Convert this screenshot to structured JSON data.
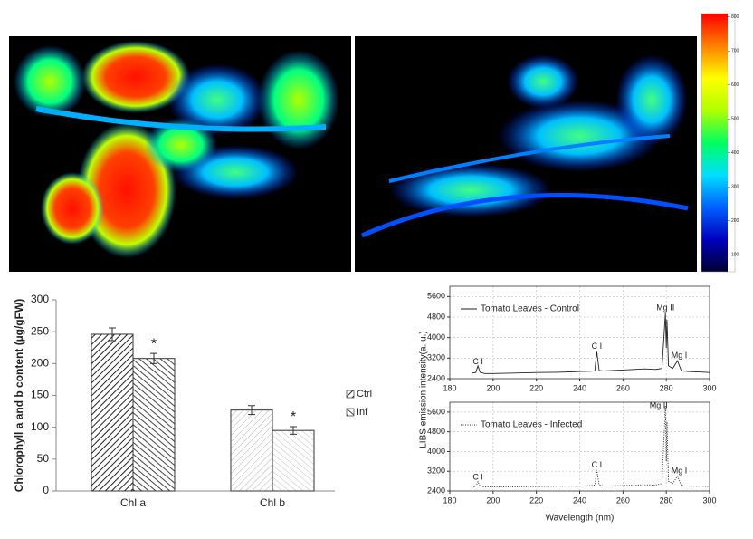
{
  "chart_data": [
    {
      "type": "colorbar",
      "ylim": [
        50,
        810
      ],
      "yticks": [
        100,
        200,
        300,
        400,
        500,
        600,
        700,
        800
      ],
      "colors": [
        "#000030",
        "#0000c0",
        "#0060ff",
        "#00e0ff",
        "#00ff60",
        "#b0ff00",
        "#ffff00",
        "#ff8000",
        "#ff0000"
      ]
    },
    {
      "type": "bar",
      "ylabel": "Chlorophyll a and b content (µg/gFW)",
      "categories": [
        "Chl a",
        "Chl b"
      ],
      "series": [
        {
          "name": "Ctrl",
          "color": "#222222",
          "values": [
            246,
            127
          ],
          "errors": [
            10,
            7
          ]
        },
        {
          "name": "Inf",
          "color": "#444444",
          "values": [
            208,
            95
          ],
          "errors": [
            8,
            6
          ],
          "significance": [
            "*",
            "*"
          ]
        }
      ],
      "ylim": [
        0,
        300
      ],
      "yticks": [
        0,
        50,
        100,
        150,
        200,
        250,
        300
      ],
      "grid": false
    },
    {
      "type": "line",
      "ylabel": "LIBS emission intensity(a. u.)",
      "x": [
        190,
        192,
        193,
        194,
        196,
        200,
        210,
        220,
        230,
        240,
        245,
        247,
        247.9,
        249,
        251,
        255,
        260,
        265,
        270,
        275,
        278,
        279.6,
        280,
        280.3,
        281,
        283,
        285.2,
        287,
        290,
        295,
        300
      ],
      "series": [
        {
          "name": "Tomato Leaves - Control",
          "color": "#222222",
          "dash": "solid",
          "values": [
            2620,
            2640,
            2900,
            2650,
            2600,
            2600,
            2620,
            2640,
            2650,
            2680,
            2690,
            2700,
            3450,
            2720,
            2700,
            2720,
            2740,
            2760,
            2780,
            2760,
            2800,
            4950,
            3600,
            4700,
            2900,
            2800,
            3100,
            2700,
            2680,
            2660,
            2640
          ]
        }
      ],
      "annotations": [
        {
          "text": "C I",
          "x": 193,
          "y": 3050
        },
        {
          "text": "C I",
          "x": 247.9,
          "y": 3650
        },
        {
          "text": "Mg II",
          "x": 279.6,
          "y": 5150
        },
        {
          "text": "Mg I",
          "x": 286,
          "y": 3300
        }
      ],
      "xlim": [
        180,
        300
      ],
      "xticks": [
        180,
        200,
        220,
        240,
        260,
        280,
        300
      ],
      "ylim": [
        2400,
        6000
      ],
      "yticks": [
        2400,
        3200,
        4000,
        4800,
        5600
      ],
      "grid": true
    },
    {
      "type": "line",
      "xlabel": "Wavelength (nm)",
      "x": [
        190,
        192,
        193,
        194,
        196,
        200,
        210,
        220,
        230,
        240,
        245,
        247,
        247.9,
        249,
        251,
        255,
        260,
        265,
        270,
        275,
        278,
        279.6,
        280,
        280.3,
        281,
        283,
        285.2,
        287,
        290,
        295,
        300
      ],
      "series": [
        {
          "name": "Tomato Leaves - Infected",
          "color": "#222222",
          "dash": "dotted",
          "values": [
            2560,
            2570,
            2780,
            2580,
            2560,
            2560,
            2570,
            2580,
            2590,
            2600,
            2620,
            2640,
            3250,
            2650,
            2600,
            2610,
            2620,
            2640,
            2650,
            2640,
            2700,
            5850,
            3600,
            5200,
            2800,
            2700,
            3000,
            2620,
            2600,
            2590,
            2580
          ]
        }
      ],
      "annotations": [
        {
          "text": "C I",
          "x": 193,
          "y": 2950
        },
        {
          "text": "C I",
          "x": 247.9,
          "y": 3450
        },
        {
          "text": "Mg II",
          "x": 276.5,
          "y": 5850
        },
        {
          "text": "Mg I",
          "x": 286,
          "y": 3200
        }
      ],
      "xlim": [
        180,
        300
      ],
      "xticks": [
        180,
        200,
        220,
        240,
        260,
        280,
        300
      ],
      "ylim": [
        2400,
        6000
      ],
      "yticks": [
        2400,
        3200,
        4000,
        4800,
        5600
      ],
      "grid": true
    }
  ]
}
